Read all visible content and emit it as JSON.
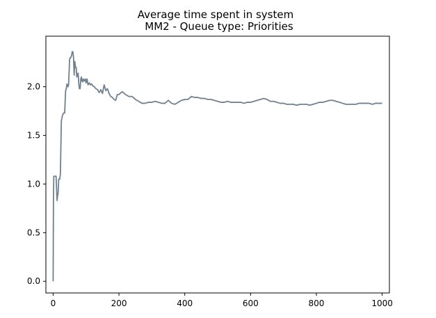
{
  "chart_data": {
    "type": "line",
    "title": "Average time spent in system",
    "subtitle": "MM2 - Queue type: Priorities",
    "xlabel": "",
    "ylabel": "",
    "xlim": [
      -22,
      1022
    ],
    "ylim": [
      -0.12,
      2.52
    ],
    "x_ticks": [
      0,
      200,
      400,
      600,
      800,
      1000
    ],
    "y_ticks": [
      0.0,
      0.5,
      1.0,
      1.5,
      2.0
    ],
    "x_tick_labels": [
      "0",
      "200",
      "400",
      "600",
      "800",
      "1000"
    ],
    "y_tick_labels": [
      "0.0",
      "0.5",
      "1.0",
      "1.5",
      "2.0"
    ],
    "grid": false,
    "legend": "none",
    "series": [
      {
        "color": "#708090",
        "x": [
          0,
          1,
          2,
          3,
          6,
          9,
          11,
          12,
          13,
          15,
          17,
          20,
          22,
          25,
          27,
          28,
          30,
          32,
          35,
          38,
          40,
          42,
          45,
          47,
          50,
          52,
          54,
          56,
          58,
          60,
          62,
          64,
          66,
          68,
          70,
          72,
          74,
          76,
          78,
          80,
          82,
          84,
          86,
          88,
          90,
          92,
          95,
          98,
          100,
          103,
          106,
          110,
          113,
          117,
          120,
          125,
          130,
          135,
          140,
          145,
          150,
          155,
          160,
          165,
          170,
          175,
          180,
          185,
          190,
          195,
          200,
          210,
          220,
          230,
          240,
          250,
          260,
          270,
          280,
          290,
          300,
          310,
          320,
          330,
          340,
          350,
          360,
          370,
          380,
          390,
          400,
          410,
          420,
          430,
          440,
          450,
          460,
          470,
          480,
          490,
          500,
          510,
          520,
          530,
          540,
          550,
          560,
          570,
          580,
          590,
          600,
          610,
          620,
          630,
          640,
          650,
          660,
          670,
          680,
          690,
          700,
          710,
          720,
          730,
          740,
          750,
          760,
          770,
          780,
          790,
          800,
          810,
          820,
          830,
          840,
          850,
          860,
          870,
          880,
          890,
          900,
          910,
          920,
          930,
          940,
          950,
          960,
          970,
          980,
          990,
          1000
        ],
        "values": [
          0.0,
          0.85,
          1.08,
          1.08,
          1.08,
          1.08,
          0.9,
          0.83,
          0.87,
          0.9,
          1.05,
          1.05,
          1.1,
          1.65,
          1.68,
          1.7,
          1.72,
          1.73,
          1.73,
          1.96,
          1.98,
          2.03,
          2.0,
          2.02,
          2.28,
          2.3,
          2.3,
          2.32,
          2.36,
          2.36,
          2.3,
          2.12,
          2.26,
          2.2,
          2.2,
          2.1,
          2.13,
          2.14,
          2.03,
          1.98,
          1.98,
          2.08,
          2.1,
          2.06,
          2.05,
          2.08,
          2.06,
          2.08,
          2.04,
          2.08,
          2.02,
          2.04,
          2.02,
          2.03,
          2.01,
          2.0,
          1.98,
          1.97,
          1.94,
          1.97,
          1.93,
          2.02,
          1.96,
          1.98,
          1.93,
          1.9,
          1.89,
          1.87,
          1.86,
          1.92,
          1.92,
          1.95,
          1.92,
          1.9,
          1.9,
          1.87,
          1.85,
          1.83,
          1.83,
          1.84,
          1.84,
          1.85,
          1.84,
          1.83,
          1.83,
          1.86,
          1.83,
          1.82,
          1.84,
          1.86,
          1.87,
          1.87,
          1.9,
          1.89,
          1.89,
          1.88,
          1.88,
          1.87,
          1.87,
          1.86,
          1.85,
          1.84,
          1.84,
          1.85,
          1.84,
          1.84,
          1.84,
          1.84,
          1.83,
          1.84,
          1.84,
          1.85,
          1.86,
          1.87,
          1.88,
          1.87,
          1.85,
          1.85,
          1.84,
          1.83,
          1.83,
          1.82,
          1.82,
          1.82,
          1.81,
          1.82,
          1.82,
          1.82,
          1.81,
          1.82,
          1.83,
          1.84,
          1.84,
          1.85,
          1.86,
          1.86,
          1.85,
          1.84,
          1.83,
          1.82,
          1.82,
          1.82,
          1.82,
          1.83,
          1.83,
          1.83,
          1.83,
          1.82,
          1.83,
          1.83,
          1.83
        ]
      }
    ]
  }
}
